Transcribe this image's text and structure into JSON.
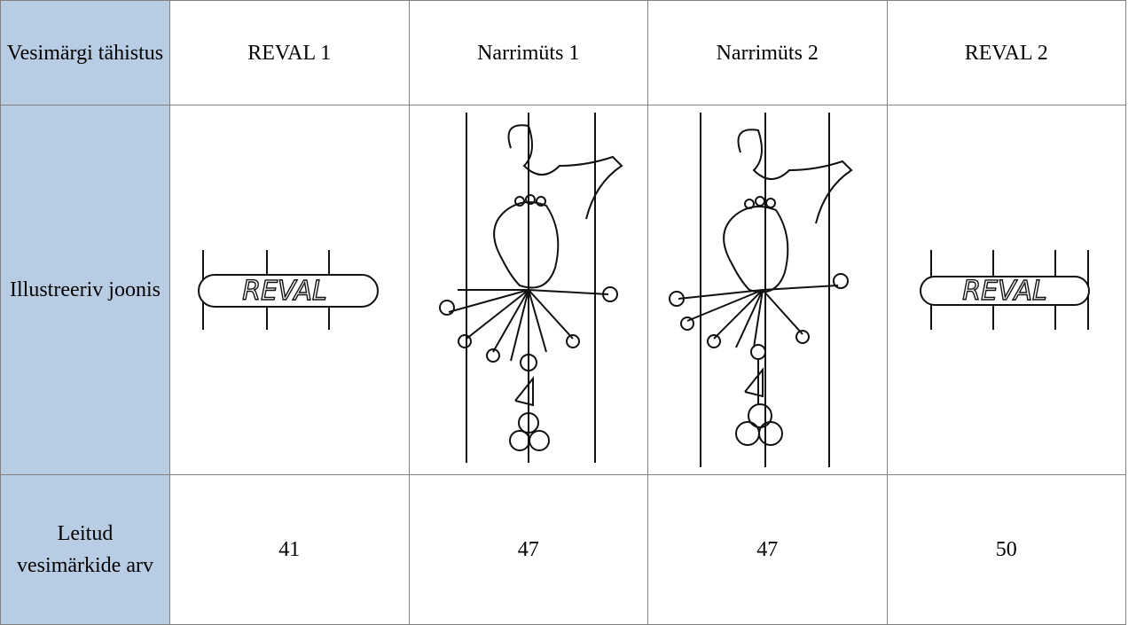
{
  "header": {
    "label": "Vesimärgi tähistus",
    "columns": [
      "REVAL 1",
      "Narrimüts 1",
      "Narrimüts 2",
      "REVAL 2"
    ]
  },
  "illustration_row": {
    "label": "Illustreeriv joonis",
    "inscriptions": [
      "REVAL",
      "REVAL"
    ]
  },
  "count_row": {
    "label": "Leitud vesimärkide arv",
    "values": [
      41,
      47,
      47,
      50
    ]
  }
}
